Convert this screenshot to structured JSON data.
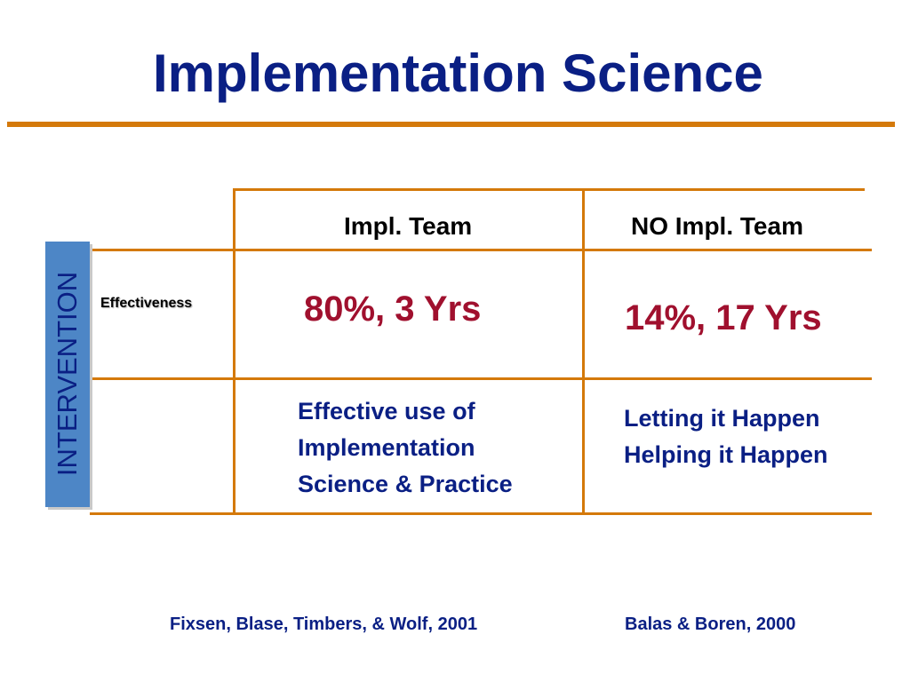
{
  "slide": {
    "title": "Implementation Science",
    "side_label": "INTERVENTION",
    "columns": [
      "Impl. Team",
      "NO Impl. Team"
    ],
    "row_label": "Effectiveness",
    "stats": {
      "impl_team": "80%, 3 Yrs",
      "no_impl_team": "14%, 17 Yrs"
    },
    "descriptions": {
      "impl_team": [
        "Effective use of",
        "Implementation",
        "Science & Practice"
      ],
      "no_impl_team": [
        "Letting it Happen",
        "Helping it Happen"
      ]
    },
    "citations": [
      "Fixsen, Blase, Timbers, & Wolf, 2001",
      "Balas & Boren, 2000"
    ],
    "colors": {
      "title": "#0a1f84",
      "rule": "#d4790a",
      "stat": "#a0102e",
      "side_bar": "#4d86c6"
    }
  }
}
